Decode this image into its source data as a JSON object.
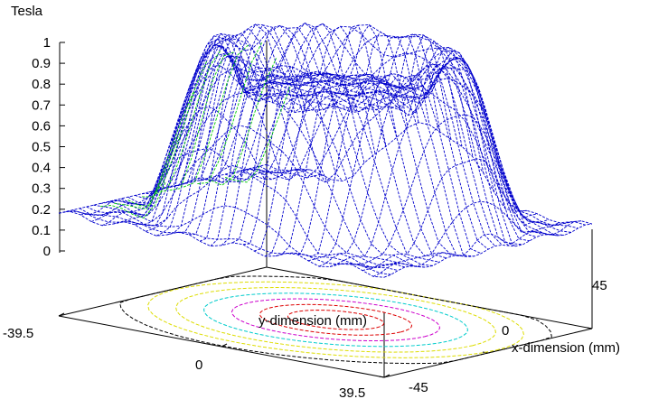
{
  "chart_data": {
    "type": "surface",
    "zlabel": "Tesla",
    "xlabel": "x-dimension (mm)",
    "ylabel": "y-dimension (mm)",
    "zlim": [
      0,
      1
    ],
    "z_ticks": [
      "0",
      "0.1",
      "0.2",
      "0.3",
      "0.4",
      "0.5",
      "0.6",
      "0.7",
      "0.8",
      "0.9",
      "1"
    ],
    "y_ticks": [
      "-39.5",
      "0",
      "39.5"
    ],
    "x_ticks": [
      "-45",
      "0",
      "45"
    ],
    "xlim": [
      -45,
      45
    ],
    "ylim": [
      -39.5,
      39.5
    ],
    "peak_value": 1.0,
    "center_value": 0.8,
    "edge_value": 0.2,
    "contour_levels": [
      0.8,
      0.7,
      0.6,
      0.5,
      0.4,
      0.3,
      0.2
    ],
    "colors": {
      "surface_top": "#0000cc",
      "surface_underside": "#00cc00",
      "contours": [
        "#dd0000",
        "#dd0000",
        "#cc00cc",
        "#00cccc",
        "#dddd00",
        "#dddd00",
        "#000000"
      ]
    }
  }
}
